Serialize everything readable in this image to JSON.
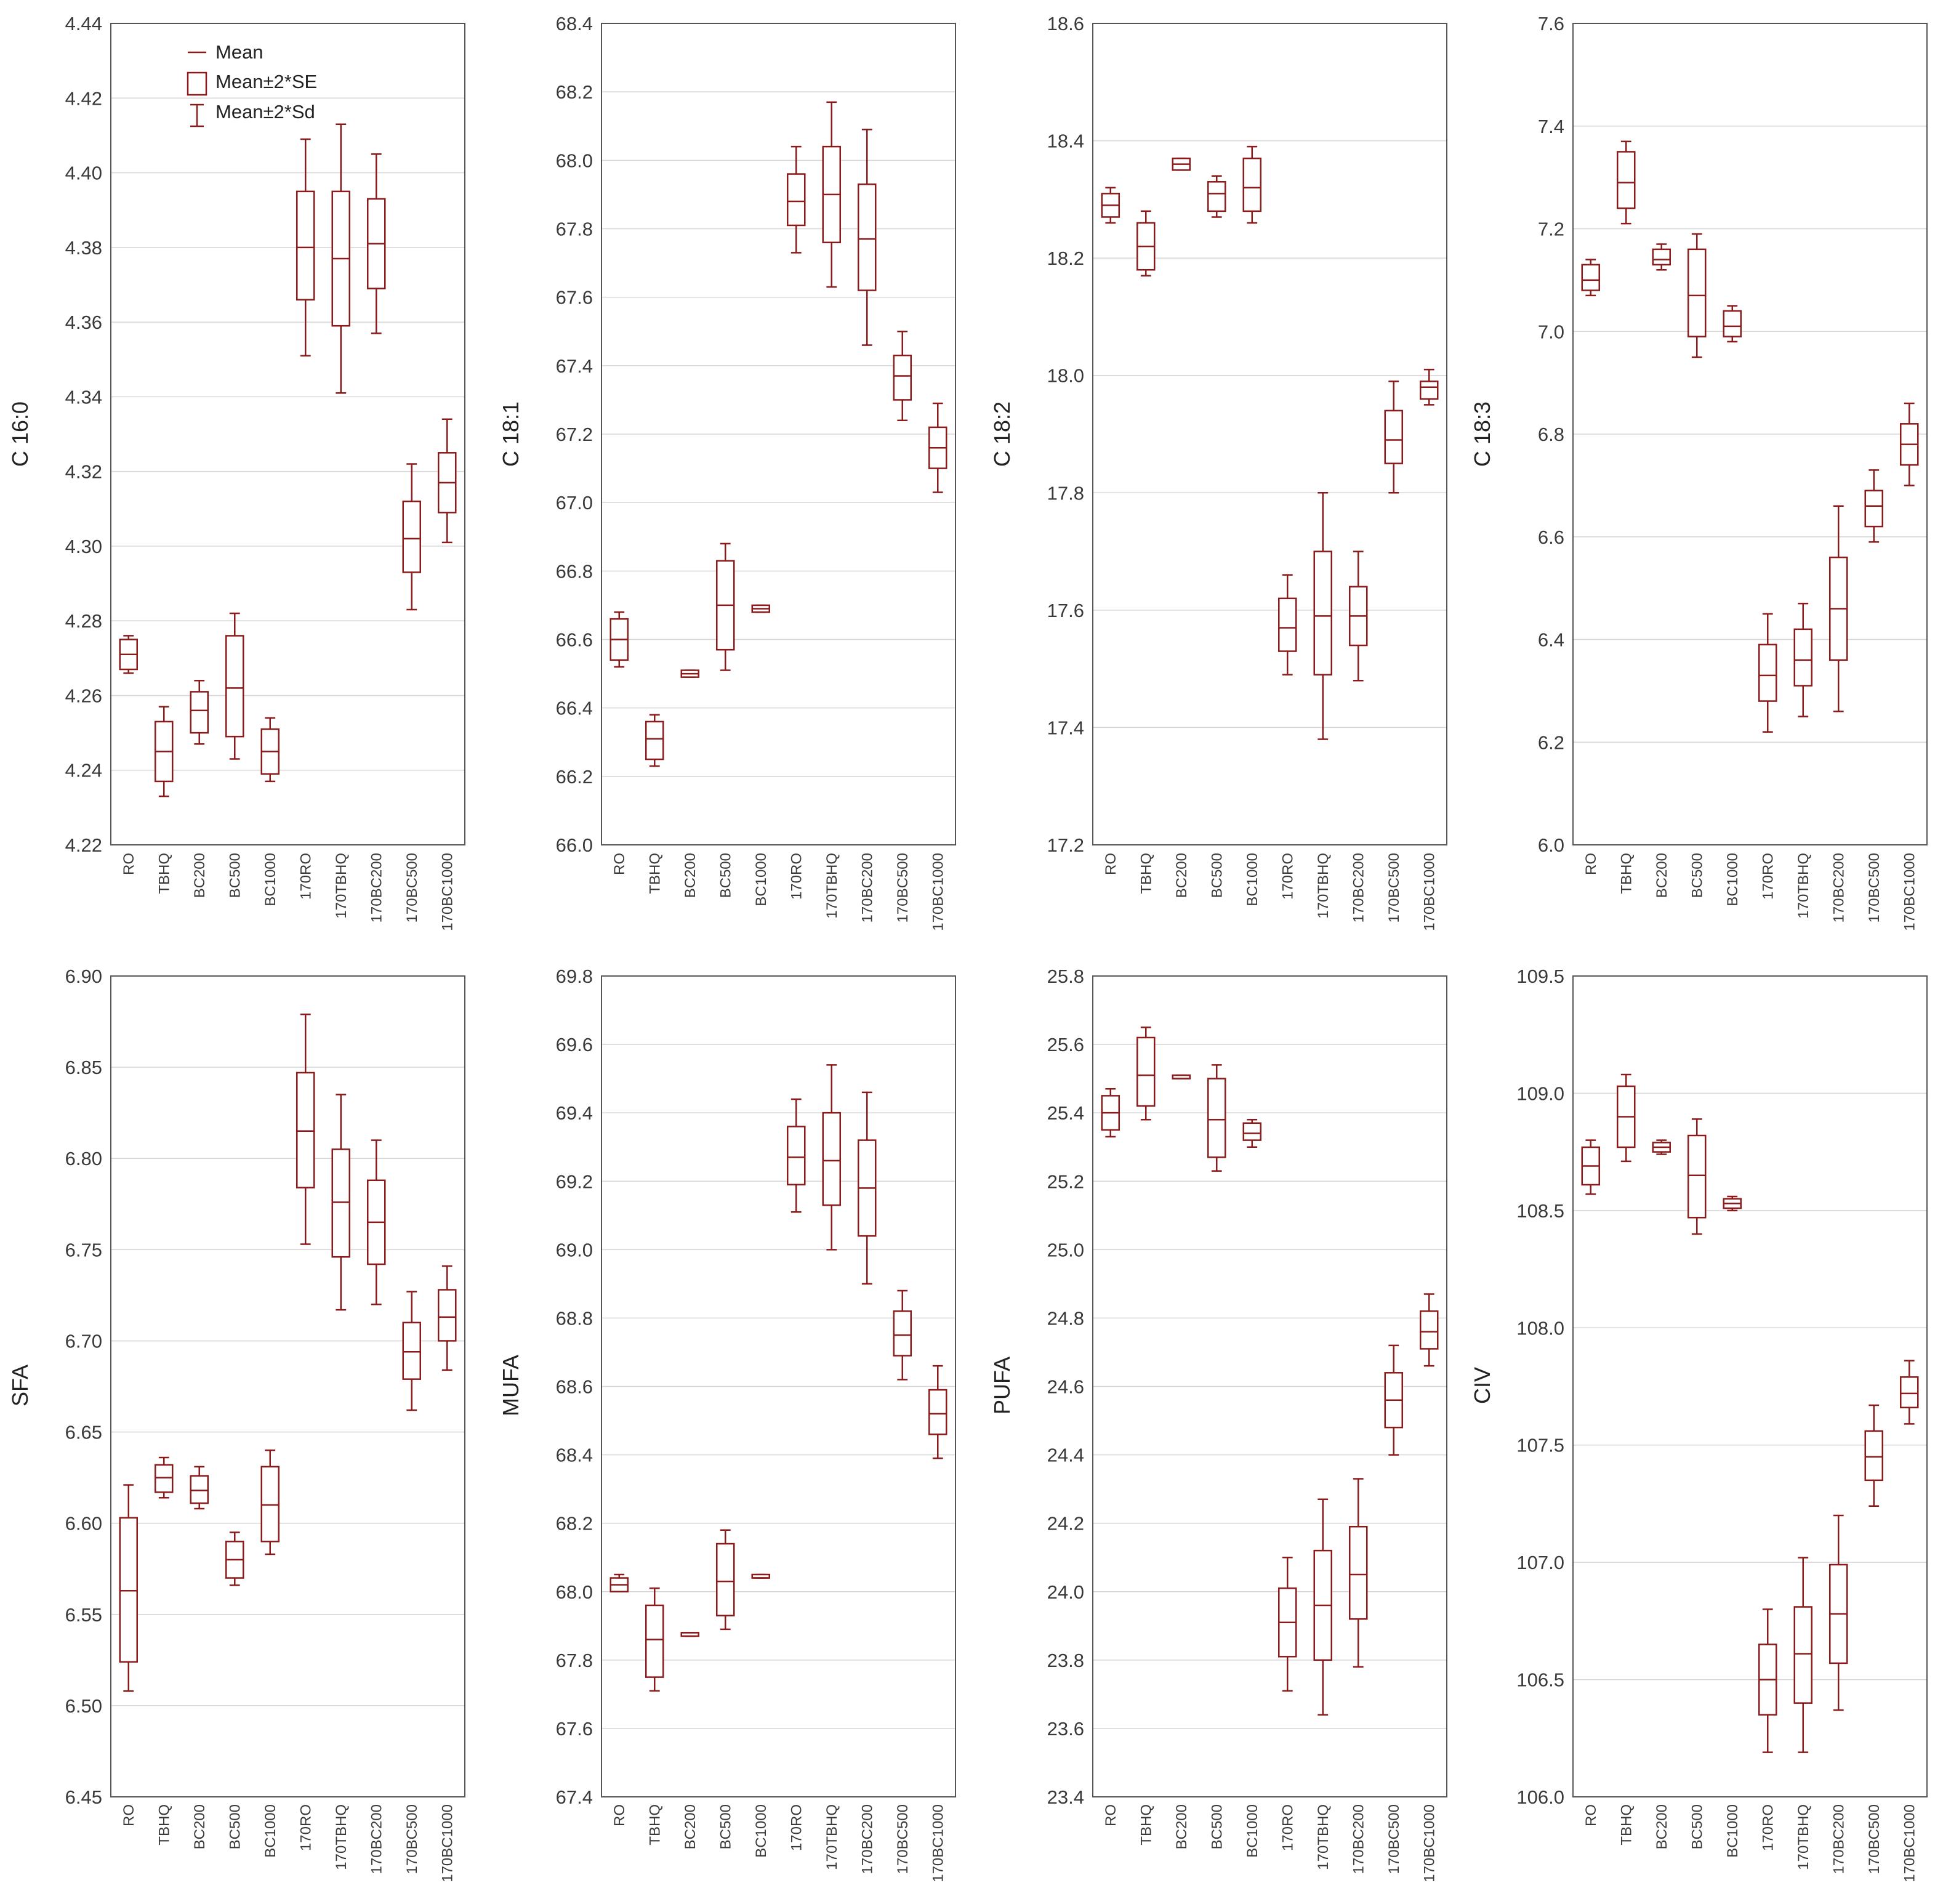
{
  "chart_data": [
    {
      "type": "box",
      "ylabel": "C 16:0",
      "ylim": [
        4.22,
        4.44
      ],
      "yticks": [
        "4.22",
        "4.24",
        "4.26",
        "4.28",
        "4.30",
        "4.32",
        "4.34",
        "4.36",
        "4.38",
        "4.40",
        "4.42",
        "4.44"
      ],
      "categories": [
        "RO",
        "TBHQ",
        "BC200",
        "BC500",
        "BC1000",
        "170RO",
        "170TBHQ",
        "170BC200",
        "170BC500",
        "170BC1000"
      ],
      "legend": {
        "mean": "Mean",
        "se": "Mean±2*SE",
        "sd": "Mean±2*Sd"
      },
      "stats": [
        {
          "mean": 4.271,
          "se_low": 4.267,
          "se_high": 4.275,
          "sd_low": 4.266,
          "sd_high": 4.276
        },
        {
          "mean": 4.245,
          "se_low": 4.237,
          "se_high": 4.253,
          "sd_low": 4.233,
          "sd_high": 4.257
        },
        {
          "mean": 4.256,
          "se_low": 4.25,
          "se_high": 4.261,
          "sd_low": 4.247,
          "sd_high": 4.264
        },
        {
          "mean": 4.262,
          "se_low": 4.249,
          "se_high": 4.276,
          "sd_low": 4.243,
          "sd_high": 4.282
        },
        {
          "mean": 4.245,
          "se_low": 4.239,
          "se_high": 4.251,
          "sd_low": 4.237,
          "sd_high": 4.254
        },
        {
          "mean": 4.38,
          "se_low": 4.366,
          "se_high": 4.395,
          "sd_low": 4.351,
          "sd_high": 4.409
        },
        {
          "mean": 4.377,
          "se_low": 4.359,
          "se_high": 4.395,
          "sd_low": 4.341,
          "sd_high": 4.413
        },
        {
          "mean": 4.381,
          "se_low": 4.369,
          "se_high": 4.393,
          "sd_low": 4.357,
          "sd_high": 4.405
        },
        {
          "mean": 4.302,
          "se_low": 4.293,
          "se_high": 4.312,
          "sd_low": 4.283,
          "sd_high": 4.322
        },
        {
          "mean": 4.317,
          "se_low": 4.309,
          "se_high": 4.325,
          "sd_low": 4.301,
          "sd_high": 4.334
        }
      ]
    },
    {
      "type": "box",
      "ylabel": "C 18:1",
      "ylim": [
        66.0,
        68.4
      ],
      "yticks": [
        "66.0",
        "66.2",
        "66.4",
        "66.6",
        "66.8",
        "67.0",
        "67.2",
        "67.4",
        "67.6",
        "67.8",
        "68.0",
        "68.2",
        "68.4"
      ],
      "categories": [
        "RO",
        "TBHQ",
        "BC200",
        "BC500",
        "BC1000",
        "170RO",
        "170TBHQ",
        "170BC200",
        "170BC500",
        "170BC1000"
      ],
      "stats": [
        {
          "mean": 66.6,
          "se_low": 66.54,
          "se_high": 66.66,
          "sd_low": 66.52,
          "sd_high": 66.68
        },
        {
          "mean": 66.31,
          "se_low": 66.25,
          "se_high": 66.36,
          "sd_low": 66.23,
          "sd_high": 66.38
        },
        {
          "mean": 66.5,
          "se_low": 66.49,
          "se_high": 66.51,
          "sd_low": 66.49,
          "sd_high": 66.51
        },
        {
          "mean": 66.7,
          "se_low": 66.57,
          "se_high": 66.83,
          "sd_low": 66.51,
          "sd_high": 66.88
        },
        {
          "mean": 66.69,
          "se_low": 66.68,
          "se_high": 66.7,
          "sd_low": 66.68,
          "sd_high": 66.7
        },
        {
          "mean": 67.88,
          "se_low": 67.81,
          "se_high": 67.96,
          "sd_low": 67.73,
          "sd_high": 68.04
        },
        {
          "mean": 67.9,
          "se_low": 67.76,
          "se_high": 68.04,
          "sd_low": 67.63,
          "sd_high": 68.17
        },
        {
          "mean": 67.77,
          "se_low": 67.62,
          "se_high": 67.93,
          "sd_low": 67.46,
          "sd_high": 68.09
        },
        {
          "mean": 67.37,
          "se_low": 67.3,
          "se_high": 67.43,
          "sd_low": 67.24,
          "sd_high": 67.5
        },
        {
          "mean": 67.16,
          "se_low": 67.1,
          "se_high": 67.22,
          "sd_low": 67.03,
          "sd_high": 67.29
        }
      ]
    },
    {
      "type": "box",
      "ylabel": "C 18:2",
      "ylim": [
        17.2,
        18.6
      ],
      "yticks": [
        "17.2",
        "17.4",
        "17.6",
        "17.8",
        "18.0",
        "18.2",
        "18.4",
        "18.6"
      ],
      "categories": [
        "RO",
        "TBHQ",
        "BC200",
        "BC500",
        "BC1000",
        "170RO",
        "170TBHQ",
        "170BC200",
        "170BC500",
        "170BC1000"
      ],
      "stats": [
        {
          "mean": 18.29,
          "se_low": 18.27,
          "se_high": 18.31,
          "sd_low": 18.26,
          "sd_high": 18.32
        },
        {
          "mean": 18.22,
          "se_low": 18.18,
          "se_high": 18.26,
          "sd_low": 18.17,
          "sd_high": 18.28
        },
        {
          "mean": 18.36,
          "se_low": 18.35,
          "se_high": 18.37,
          "sd_low": 18.35,
          "sd_high": 18.37
        },
        {
          "mean": 18.31,
          "se_low": 18.28,
          "se_high": 18.33,
          "sd_low": 18.27,
          "sd_high": 18.34
        },
        {
          "mean": 18.32,
          "se_low": 18.28,
          "se_high": 18.37,
          "sd_low": 18.26,
          "sd_high": 18.39
        },
        {
          "mean": 17.57,
          "se_low": 17.53,
          "se_high": 17.62,
          "sd_low": 17.49,
          "sd_high": 17.66
        },
        {
          "mean": 17.59,
          "se_low": 17.49,
          "se_high": 17.7,
          "sd_low": 17.38,
          "sd_high": 17.8
        },
        {
          "mean": 17.59,
          "se_low": 17.54,
          "se_high": 17.64,
          "sd_low": 17.48,
          "sd_high": 17.7
        },
        {
          "mean": 17.89,
          "se_low": 17.85,
          "se_high": 17.94,
          "sd_low": 17.8,
          "sd_high": 17.99
        },
        {
          "mean": 17.98,
          "se_low": 17.96,
          "se_high": 17.99,
          "sd_low": 17.95,
          "sd_high": 18.01
        }
      ]
    },
    {
      "type": "box",
      "ylabel": "C 18:3",
      "ylim": [
        6.0,
        7.6
      ],
      "yticks": [
        "6.0",
        "6.2",
        "6.4",
        "6.6",
        "6.8",
        "7.0",
        "7.2",
        "7.4",
        "7.6"
      ],
      "categories": [
        "RO",
        "TBHQ",
        "BC200",
        "BC500",
        "BC1000",
        "170RO",
        "170TBHQ",
        "170BC200",
        "170BC500",
        "170BC1000"
      ],
      "stats": [
        {
          "mean": 7.1,
          "se_low": 7.08,
          "se_high": 7.13,
          "sd_low": 7.07,
          "sd_high": 7.14
        },
        {
          "mean": 7.29,
          "se_low": 7.24,
          "se_high": 7.35,
          "sd_low": 7.21,
          "sd_high": 7.37
        },
        {
          "mean": 7.14,
          "se_low": 7.13,
          "se_high": 7.16,
          "sd_low": 7.12,
          "sd_high": 7.17
        },
        {
          "mean": 7.07,
          "se_low": 6.99,
          "se_high": 7.16,
          "sd_low": 6.95,
          "sd_high": 7.19
        },
        {
          "mean": 7.01,
          "se_low": 6.99,
          "se_high": 7.04,
          "sd_low": 6.98,
          "sd_high": 7.05
        },
        {
          "mean": 6.33,
          "se_low": 6.28,
          "se_high": 6.39,
          "sd_low": 6.22,
          "sd_high": 6.45
        },
        {
          "mean": 6.36,
          "se_low": 6.31,
          "se_high": 6.42,
          "sd_low": 6.25,
          "sd_high": 6.47
        },
        {
          "mean": 6.46,
          "se_low": 6.36,
          "se_high": 6.56,
          "sd_low": 6.26,
          "sd_high": 6.66
        },
        {
          "mean": 6.66,
          "se_low": 6.62,
          "se_high": 6.69,
          "sd_low": 6.59,
          "sd_high": 6.73
        },
        {
          "mean": 6.78,
          "se_low": 6.74,
          "se_high": 6.82,
          "sd_low": 6.7,
          "sd_high": 6.86
        }
      ]
    },
    {
      "type": "box",
      "ylabel": "SFA",
      "ylim": [
        6.45,
        6.9
      ],
      "yticks": [
        "6.45",
        "6.50",
        "6.55",
        "6.60",
        "6.65",
        "6.70",
        "6.75",
        "6.80",
        "6.85",
        "6.90"
      ],
      "categories": [
        "RO",
        "TBHQ",
        "BC200",
        "BC500",
        "BC1000",
        "170RO",
        "170TBHQ",
        "170BC200",
        "170BC500",
        "170BC1000"
      ],
      "stats": [
        {
          "mean": 6.563,
          "se_low": 6.524,
          "se_high": 6.603,
          "sd_low": 6.508,
          "sd_high": 6.621
        },
        {
          "mean": 6.625,
          "se_low": 6.617,
          "se_high": 6.632,
          "sd_low": 6.614,
          "sd_high": 6.636
        },
        {
          "mean": 6.618,
          "se_low": 6.611,
          "se_high": 6.626,
          "sd_low": 6.608,
          "sd_high": 6.631
        },
        {
          "mean": 6.58,
          "se_low": 6.57,
          "se_high": 6.59,
          "sd_low": 6.566,
          "sd_high": 6.595
        },
        {
          "mean": 6.61,
          "se_low": 6.59,
          "se_high": 6.631,
          "sd_low": 6.583,
          "sd_high": 6.64
        },
        {
          "mean": 6.815,
          "se_low": 6.784,
          "se_high": 6.847,
          "sd_low": 6.753,
          "sd_high": 6.879
        },
        {
          "mean": 6.776,
          "se_low": 6.746,
          "se_high": 6.805,
          "sd_low": 6.717,
          "sd_high": 6.835
        },
        {
          "mean": 6.765,
          "se_low": 6.742,
          "se_high": 6.788,
          "sd_low": 6.72,
          "sd_high": 6.81
        },
        {
          "mean": 6.694,
          "se_low": 6.679,
          "se_high": 6.71,
          "sd_low": 6.662,
          "sd_high": 6.727
        },
        {
          "mean": 6.713,
          "se_low": 6.7,
          "se_high": 6.728,
          "sd_low": 6.684,
          "sd_high": 6.741
        }
      ]
    },
    {
      "type": "box",
      "ylabel": "MUFA",
      "ylim": [
        67.4,
        69.8
      ],
      "yticks": [
        "67.4",
        "67.6",
        "67.8",
        "68.0",
        "68.2",
        "68.4",
        "68.6",
        "68.8",
        "69.0",
        "69.2",
        "69.4",
        "69.6",
        "69.8"
      ],
      "categories": [
        "RO",
        "TBHQ",
        "BC200",
        "BC500",
        "BC1000",
        "170RO",
        "170TBHQ",
        "170BC200",
        "170BC500",
        "170BC1000"
      ],
      "stats": [
        {
          "mean": 68.02,
          "se_low": 68.0,
          "se_high": 68.04,
          "sd_low": 68.0,
          "sd_high": 68.05
        },
        {
          "mean": 67.86,
          "se_low": 67.75,
          "se_high": 67.96,
          "sd_low": 67.71,
          "sd_high": 68.01
        },
        {
          "mean": 67.88,
          "se_low": 67.87,
          "se_high": 67.88,
          "sd_low": 67.87,
          "sd_high": 67.88
        },
        {
          "mean": 68.03,
          "se_low": 67.93,
          "se_high": 68.14,
          "sd_low": 67.89,
          "sd_high": 68.18
        },
        {
          "mean": 68.04,
          "se_low": 68.04,
          "se_high": 68.05,
          "sd_low": 68.04,
          "sd_high": 68.05
        },
        {
          "mean": 69.27,
          "se_low": 69.19,
          "se_high": 69.36,
          "sd_low": 69.11,
          "sd_high": 69.44
        },
        {
          "mean": 69.26,
          "se_low": 69.13,
          "se_high": 69.4,
          "sd_low": 69.0,
          "sd_high": 69.54
        },
        {
          "mean": 69.18,
          "se_low": 69.04,
          "se_high": 69.32,
          "sd_low": 68.9,
          "sd_high": 69.46
        },
        {
          "mean": 68.75,
          "se_low": 68.69,
          "se_high": 68.82,
          "sd_low": 68.62,
          "sd_high": 68.88
        },
        {
          "mean": 68.52,
          "se_low": 68.46,
          "se_high": 68.59,
          "sd_low": 68.39,
          "sd_high": 68.66
        }
      ]
    },
    {
      "type": "box",
      "ylabel": "PUFA",
      "ylim": [
        23.4,
        25.8
      ],
      "yticks": [
        "23.4",
        "23.6",
        "23.8",
        "24.0",
        "24.2",
        "24.4",
        "24.6",
        "24.8",
        "25.0",
        "25.2",
        "25.4",
        "25.6",
        "25.8"
      ],
      "categories": [
        "RO",
        "TBHQ",
        "BC200",
        "BC500",
        "BC1000",
        "170RO",
        "170TBHQ",
        "170BC200",
        "170BC500",
        "170BC1000"
      ],
      "stats": [
        {
          "mean": 25.4,
          "se_low": 25.35,
          "se_high": 25.45,
          "sd_low": 25.33,
          "sd_high": 25.47
        },
        {
          "mean": 25.51,
          "se_low": 25.42,
          "se_high": 25.62,
          "sd_low": 25.38,
          "sd_high": 25.65
        },
        {
          "mean": 25.5,
          "se_low": 25.5,
          "se_high": 25.51,
          "sd_low": 25.5,
          "sd_high": 25.51
        },
        {
          "mean": 25.38,
          "se_low": 25.27,
          "se_high": 25.5,
          "sd_low": 25.23,
          "sd_high": 25.54
        },
        {
          "mean": 25.34,
          "se_low": 25.32,
          "se_high": 25.37,
          "sd_low": 25.3,
          "sd_high": 25.38
        },
        {
          "mean": 23.91,
          "se_low": 23.81,
          "se_high": 24.01,
          "sd_low": 23.71,
          "sd_high": 24.1
        },
        {
          "mean": 23.96,
          "se_low": 23.8,
          "se_high": 24.12,
          "sd_low": 23.64,
          "sd_high": 24.27
        },
        {
          "mean": 24.05,
          "se_low": 23.92,
          "se_high": 24.19,
          "sd_low": 23.78,
          "sd_high": 24.33
        },
        {
          "mean": 24.56,
          "se_low": 24.48,
          "se_high": 24.64,
          "sd_low": 24.4,
          "sd_high": 24.72
        },
        {
          "mean": 24.76,
          "se_low": 24.71,
          "se_high": 24.82,
          "sd_low": 24.66,
          "sd_high": 24.87
        }
      ]
    },
    {
      "type": "box",
      "ylabel": "CIV",
      "ylim": [
        106.0,
        109.5
      ],
      "yticks": [
        "106.0",
        "106.5",
        "107.0",
        "107.5",
        "108.0",
        "108.5",
        "109.0",
        "109.5"
      ],
      "categories": [
        "RO",
        "TBHQ",
        "BC200",
        "BC500",
        "BC1000",
        "170RO",
        "170TBHQ",
        "170BC200",
        "170BC500",
        "170BC1000"
      ],
      "stats": [
        {
          "mean": 108.69,
          "se_low": 108.61,
          "se_high": 108.77,
          "sd_low": 108.57,
          "sd_high": 108.8
        },
        {
          "mean": 108.9,
          "se_low": 108.77,
          "se_high": 109.03,
          "sd_low": 108.71,
          "sd_high": 109.08
        },
        {
          "mean": 108.77,
          "se_low": 108.75,
          "se_high": 108.79,
          "sd_low": 108.74,
          "sd_high": 108.8
        },
        {
          "mean": 108.65,
          "se_low": 108.47,
          "se_high": 108.82,
          "sd_low": 108.4,
          "sd_high": 108.89
        },
        {
          "mean": 108.53,
          "se_low": 108.51,
          "se_high": 108.55,
          "sd_low": 108.5,
          "sd_high": 108.56
        },
        {
          "mean": 106.5,
          "se_low": 106.35,
          "se_high": 106.65,
          "sd_low": 106.19,
          "sd_high": 106.8
        },
        {
          "mean": 106.61,
          "se_low": 106.4,
          "se_high": 106.81,
          "sd_low": 106.19,
          "sd_high": 107.02
        },
        {
          "mean": 106.78,
          "se_low": 106.57,
          "se_high": 106.99,
          "sd_low": 106.37,
          "sd_high": 107.2
        },
        {
          "mean": 107.45,
          "se_low": 107.35,
          "se_high": 107.56,
          "sd_low": 107.24,
          "sd_high": 107.67
        },
        {
          "mean": 107.72,
          "se_low": 107.66,
          "se_high": 107.79,
          "sd_low": 107.59,
          "sd_high": 107.86
        }
      ]
    }
  ],
  "colors": {
    "box": "#8b1a1a",
    "frame": "#555555",
    "grid": "#d6d6d6",
    "text": "#3a3a3a"
  }
}
